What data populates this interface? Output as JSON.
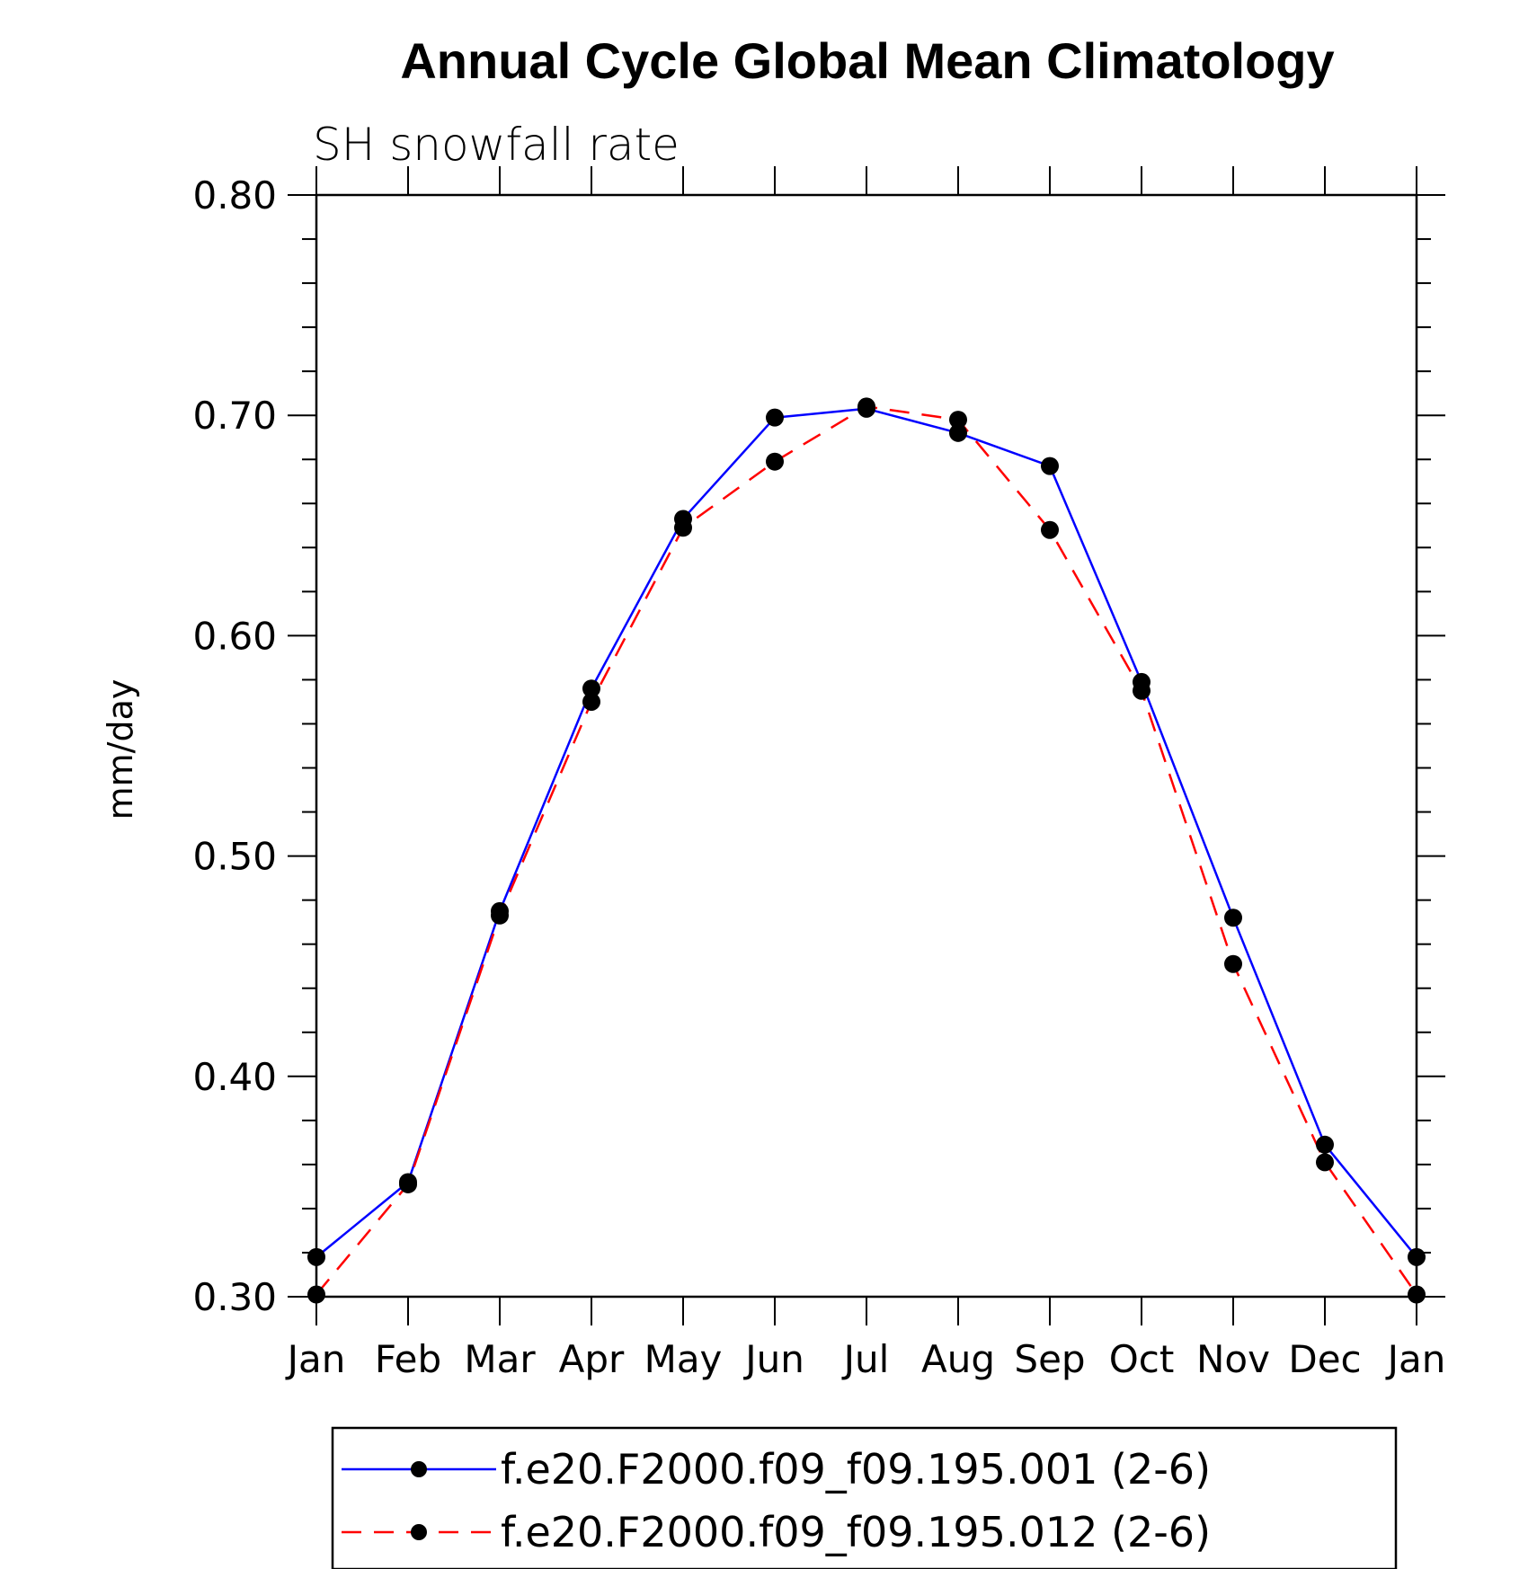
{
  "chart_data": {
    "type": "line",
    "title": "Annual Cycle Global Mean Climatology",
    "subtitle": "SH snowfall rate",
    "xlabel": "",
    "ylabel": "mm/day",
    "categories": [
      "Jan",
      "Feb",
      "Mar",
      "Apr",
      "May",
      "Jun",
      "Jul",
      "Aug",
      "Sep",
      "Oct",
      "Nov",
      "Dec",
      "Jan"
    ],
    "ylim": [
      0.3,
      0.8
    ],
    "yticks": [
      "0.30",
      "0.40",
      "0.50",
      "0.60",
      "0.70",
      "0.80"
    ],
    "grid": false,
    "legend_position": "bottom",
    "series": [
      {
        "name": "f.e20.F2000.f09_f09.195.001 (2-6)",
        "color": "#0000ff",
        "style": "solid",
        "marker": "filled-circle",
        "values": [
          0.318,
          0.352,
          0.475,
          0.576,
          0.653,
          0.699,
          0.703,
          0.692,
          0.677,
          0.579,
          0.472,
          0.369,
          0.318
        ]
      },
      {
        "name": "f.e20.F2000.f09_f09.195.012 (2-6)",
        "color": "#ff0000",
        "style": "dashed",
        "marker": "filled-circle",
        "values": [
          0.301,
          0.351,
          0.473,
          0.57,
          0.649,
          0.679,
          0.704,
          0.698,
          0.648,
          0.575,
          0.451,
          0.361,
          0.301
        ]
      }
    ]
  }
}
